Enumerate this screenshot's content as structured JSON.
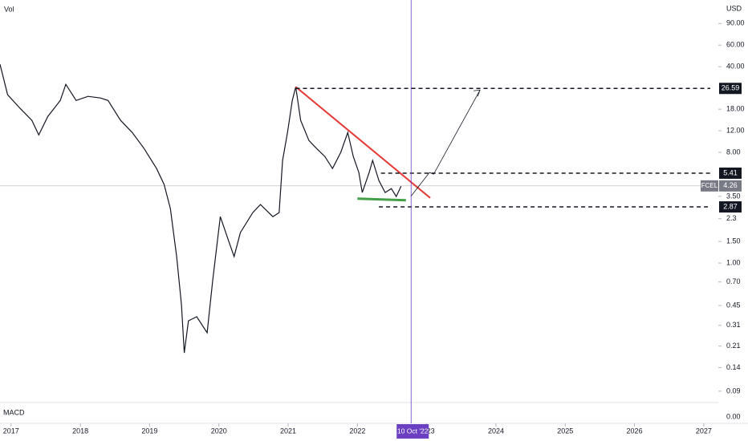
{
  "chart_data": {
    "type": "line",
    "vol_label": "Vol",
    "macd_label": "MACD",
    "currency": "USD",
    "log_scale": true,
    "color": "#131722",
    "x": [
      2016.84,
      2016.95,
      2017.13,
      2017.3,
      2017.4,
      2017.53,
      2017.71,
      2017.79,
      2017.94,
      2018.11,
      2018.29,
      2018.4,
      2018.58,
      2018.75,
      2018.92,
      2019.1,
      2019.21,
      2019.3,
      2019.39,
      2019.46,
      2019.5,
      2019.56,
      2019.68,
      2019.83,
      2019.91,
      2020.02,
      2020.14,
      2020.22,
      2020.31,
      2020.49,
      2020.6,
      2020.78,
      2020.87,
      2020.92,
      2020.99,
      2021.06,
      2021.11,
      2021.18,
      2021.3,
      2021.41,
      2021.53,
      2021.64,
      2021.76,
      2021.86,
      2021.94,
      2022.02,
      2022.07,
      2022.17,
      2022.22,
      2022.31,
      2022.4,
      2022.49,
      2022.56,
      2022.63
    ],
    "values": [
      41.8,
      23.6,
      18.3,
      14.6,
      11.1,
      15.7,
      21.2,
      28.7,
      21.2,
      22.9,
      22.2,
      21.2,
      14.6,
      11.6,
      8.6,
      5.9,
      4.37,
      2.78,
      1.13,
      0.457,
      0.185,
      0.338,
      0.365,
      0.27,
      0.72,
      2.39,
      1.52,
      1.13,
      1.77,
      2.58,
      3.0,
      2.39,
      2.58,
      6.87,
      11.6,
      21.2,
      27.4,
      14.6,
      10,
      8.6,
      7.4,
      5.9,
      8.0,
      11.6,
      7.4,
      5.48,
      3.76,
      5.48,
      6.87,
      4.71,
      3.76,
      4.05,
      3.49,
      4.24
    ],
    "xlim": [
      2016.84,
      2027.21
    ],
    "xticks": [
      2017,
      2018,
      2019,
      2020,
      2021,
      2022,
      2023,
      2024,
      2025,
      2026,
      2027
    ],
    "ylim": [
      0.075,
      140
    ],
    "yticks": [
      {
        "value": 90,
        "label": "90.00"
      },
      {
        "value": 60,
        "label": "60.00"
      },
      {
        "value": 40,
        "label": "40.00"
      },
      {
        "value": 18,
        "label": "18.00"
      },
      {
        "value": 12,
        "label": "12.00"
      },
      {
        "value": 8,
        "label": "8.00"
      },
      {
        "value": 3.5,
        "label": "3.50"
      },
      2.3,
      {
        "value": 1.5,
        "label": "1.50"
      },
      {
        "value": 1,
        "label": "1.00"
      },
      {
        "value": 0.7,
        "label": "0.70"
      },
      0.45,
      0.31,
      0.21,
      0.14,
      0.09
    ],
    "macd_yticks": [
      {
        "value": 0,
        "label": "0.00"
      }
    ],
    "levels": [
      26.59,
      5.41,
      2.87
    ],
    "level_starts": [
      2021.11,
      2022.34,
      2022.31
    ],
    "symbol": "FCEL",
    "last": 4.26,
    "trendline": {
      "x": [
        2021.11,
        2023.05
      ],
      "values": [
        27.4,
        3.4
      ],
      "color": "#e53935"
    },
    "support": {
      "x": [
        2022.0,
        2022.7
      ],
      "values": [
        3.35,
        3.25
      ],
      "color": "#43a047"
    },
    "projection": {
      "x": [
        2022.77,
        2023.04,
        2023.1,
        2023.77
      ],
      "values": [
        3.49,
        5.48,
        5.3,
        25.8
      ]
    },
    "cursor": {
      "x": 2022.775,
      "label": "10 Oct '22",
      "color": "#6a3fc1"
    }
  }
}
